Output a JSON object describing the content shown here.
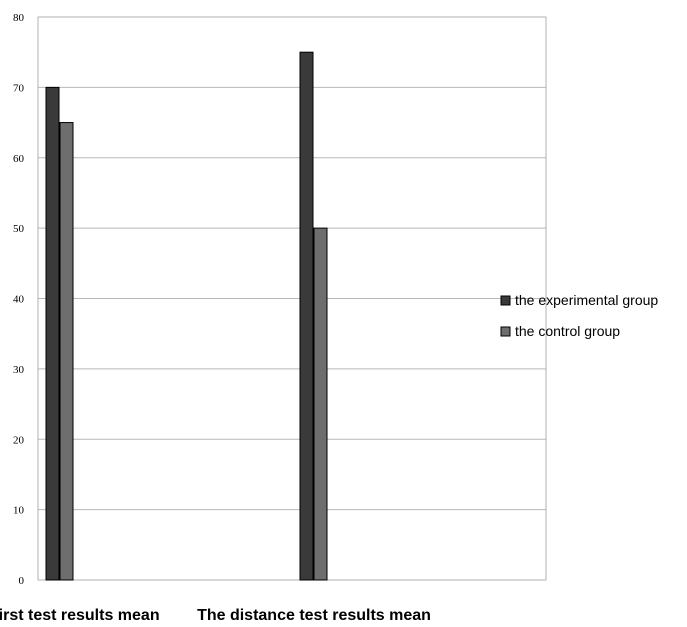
{
  "chart_data": {
    "type": "bar",
    "categories": [
      "The first test results mean",
      "The distance test results mean"
    ],
    "series": [
      {
        "name": "the experimental group",
        "values": [
          70,
          75
        ],
        "color": "#3a3a3a"
      },
      {
        "name": "the control group",
        "values": [
          65,
          50
        ],
        "color": "#6e6e6e"
      }
    ],
    "xlabel": "",
    "ylabel": "",
    "ylim": [
      0,
      80
    ],
    "yticks": [
      0,
      10,
      20,
      30,
      40,
      50,
      60,
      70,
      80
    ],
    "grid": true,
    "legend_position": "right"
  }
}
